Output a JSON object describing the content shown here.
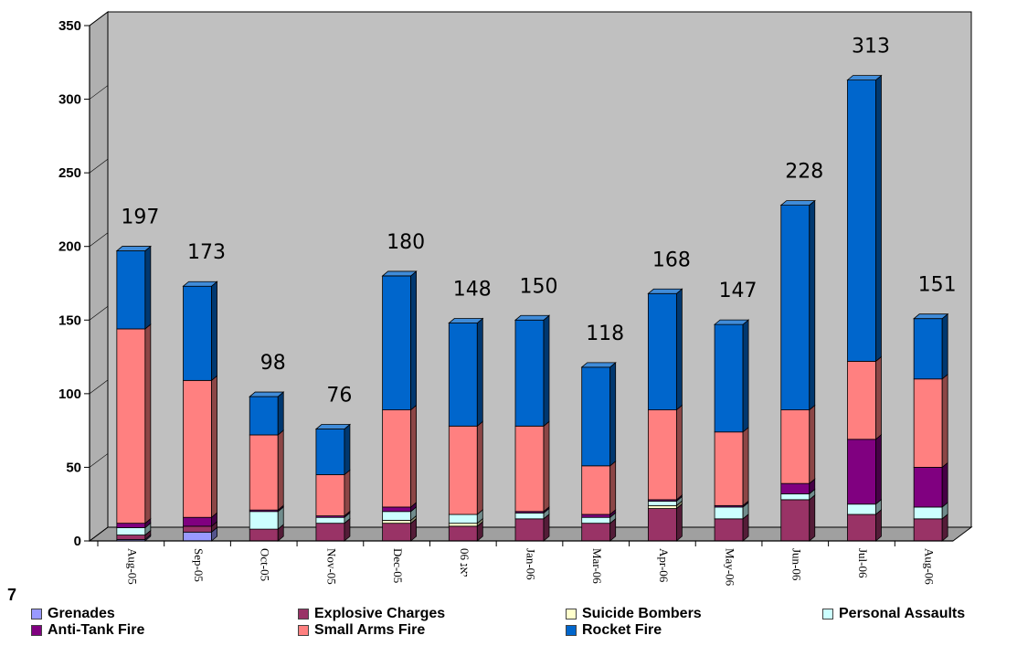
{
  "chart_data": {
    "type": "bar",
    "stacked": true,
    "three_d": true,
    "title": "",
    "xlabel": "",
    "ylabel": "",
    "ylim": [
      0,
      350
    ],
    "yticks": [
      0,
      50,
      100,
      150,
      200,
      250,
      300,
      350
    ],
    "grid": false,
    "legend_placement": "bottom",
    "categories": [
      "Aug-05",
      "Sep-05",
      "Oct-05",
      "Nov-05",
      "Dec-05",
      "06 יאנ",
      "Jan-06",
      "Mar-06",
      "Apr-06",
      "May-06",
      "Jun-06",
      "Jul-06",
      "Aug-06"
    ],
    "totals": [
      197,
      173,
      98,
      76,
      180,
      148,
      150,
      118,
      168,
      147,
      228,
      313,
      151
    ],
    "series": [
      {
        "name": "Grenades",
        "color": "#9999ff",
        "values": [
          1,
          6,
          0,
          0,
          0,
          0,
          0,
          0,
          0,
          0,
          0,
          0,
          0
        ]
      },
      {
        "name": "Explosive Charges",
        "color": "#993366",
        "values": [
          3,
          4,
          8,
          12,
          12,
          10,
          15,
          12,
          22,
          15,
          28,
          18,
          15
        ]
      },
      {
        "name": "Suicide Bombers",
        "color": "#ffffcc",
        "values": [
          0,
          0,
          0,
          0,
          2,
          2,
          0,
          0,
          2,
          0,
          0,
          0,
          0
        ]
      },
      {
        "name": "Personal Assaults",
        "color": "#ccffff",
        "values": [
          5,
          0,
          12,
          4,
          6,
          6,
          4,
          4,
          3,
          8,
          4,
          7,
          8
        ]
      },
      {
        "name": "Anti-Tank Fire",
        "color": "#800080",
        "values": [
          3,
          6,
          1,
          1,
          3,
          0,
          1,
          2,
          1,
          1,
          7,
          44,
          27
        ]
      },
      {
        "name": "Small Arms Fire",
        "color": "#ff8080",
        "values": [
          132,
          93,
          51,
          28,
          66,
          60,
          58,
          33,
          61,
          50,
          50,
          53,
          60
        ]
      },
      {
        "name": "Rocket Fire",
        "color": "#0066cc",
        "values": [
          53,
          64,
          26,
          31,
          91,
          70,
          72,
          67,
          79,
          73,
          139,
          191,
          41
        ]
      }
    ],
    "colors": {
      "plot_background": "#c0c0c0",
      "floor": "#a0a0a0"
    }
  },
  "page": {
    "stray_mark": "7"
  }
}
